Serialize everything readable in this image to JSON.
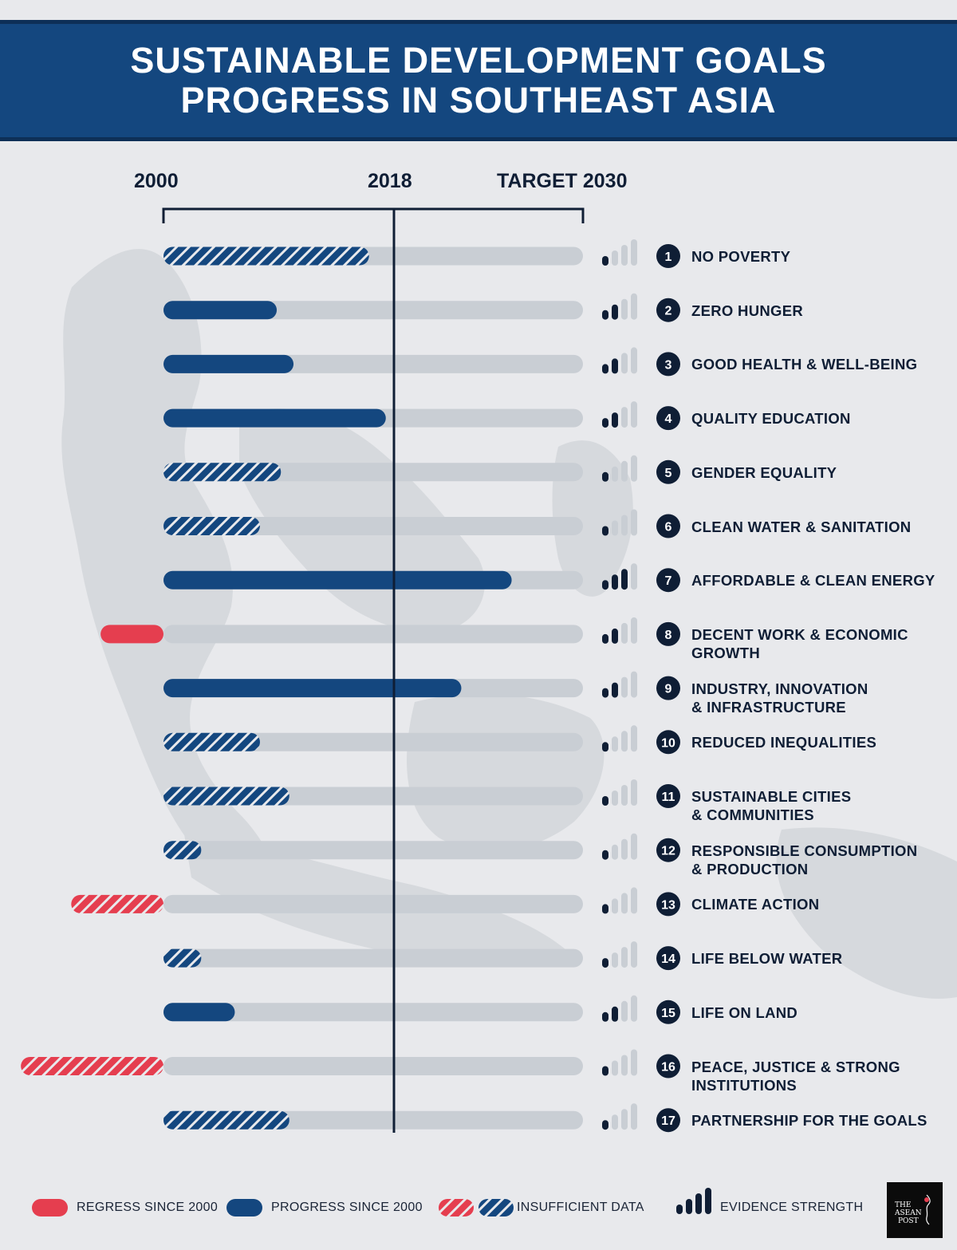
{
  "header": {
    "title_line1": "SUSTAINABLE DEVELOPMENT GOALS",
    "title_line2": "PROGRESS IN SOUTHEAST ASIA"
  },
  "axis": {
    "start_label": "2000",
    "mid_label": "2018",
    "end_label": "TARGET 2030"
  },
  "chart_data": {
    "type": "bar",
    "title": "Sustainable Development Goals Progress in Southeast Asia",
    "scale": {
      "start": "2000",
      "now": "2018",
      "target": "TARGET 2030",
      "now_fraction": 0.55
    },
    "value_unit": "fraction of the way from 2000 baseline to 2030 target (negative = regress)",
    "goals": [
      {
        "num": "1",
        "label": "NO POVERTY",
        "value": 0.49,
        "status": "insufficient",
        "evidence": 1
      },
      {
        "num": "2",
        "label": "ZERO HUNGER",
        "value": 0.27,
        "status": "progress",
        "evidence": 2
      },
      {
        "num": "3",
        "label": "GOOD HEALTH & WELL-BEING",
        "value": 0.31,
        "status": "progress",
        "evidence": 2
      },
      {
        "num": "4",
        "label": "QUALITY EDUCATION",
        "value": 0.53,
        "status": "progress",
        "evidence": 2
      },
      {
        "num": "5",
        "label": "GENDER EQUALITY",
        "value": 0.28,
        "status": "insufficient",
        "evidence": 1
      },
      {
        "num": "6",
        "label": "CLEAN WATER & SANITATION",
        "value": 0.23,
        "status": "insufficient",
        "evidence": 1
      },
      {
        "num": "7",
        "label": "AFFORDABLE & CLEAN ENERGY",
        "value": 0.83,
        "status": "progress",
        "evidence": 3
      },
      {
        "num": "8",
        "label": "DECENT WORK & ECONOMIC GROWTH",
        "value": -0.15,
        "status": "regress",
        "evidence": 2
      },
      {
        "num": "9",
        "label": "INDUSTRY, INNOVATION & INFRASTRUCTURE",
        "value": 0.71,
        "status": "progress",
        "evidence": 2
      },
      {
        "num": "10",
        "label": "REDUCED INEQUALITIES",
        "value": 0.23,
        "status": "insufficient",
        "evidence": 1
      },
      {
        "num": "11",
        "label": "SUSTAINABLE CITIES & COMMUNITIES",
        "value": 0.3,
        "status": "insufficient",
        "evidence": 1
      },
      {
        "num": "12",
        "label": "RESPONSIBLE CONSUMPTION & PRODUCTION",
        "value": 0.09,
        "status": "insufficient",
        "evidence": 1
      },
      {
        "num": "13",
        "label": "CLIMATE ACTION",
        "value": -0.22,
        "status": "regress-insufficient",
        "evidence": 1
      },
      {
        "num": "14",
        "label": "LIFE BELOW WATER",
        "value": 0.09,
        "status": "insufficient",
        "evidence": 1
      },
      {
        "num": "15",
        "label": "LIFE ON LAND",
        "value": 0.17,
        "status": "progress",
        "evidence": 2
      },
      {
        "num": "16",
        "label": "PEACE, JUSTICE & STRONG INSTITUTIONS",
        "value": -0.34,
        "status": "regress-insufficient",
        "evidence": 1
      },
      {
        "num": "17",
        "label": "PARTNERSHIP FOR THE GOALS",
        "value": 0.3,
        "status": "insufficient",
        "evidence": 1
      }
    ],
    "legend": [
      {
        "key": "regress",
        "label": "REGRESS SINCE 2000"
      },
      {
        "key": "progress",
        "label": "PROGRESS SINCE 2000"
      },
      {
        "key": "insufficient",
        "label": "INSUFFICIENT DATA"
      },
      {
        "key": "evidence",
        "label": "EVIDENCE STRENGTH"
      }
    ]
  },
  "labels": [
    {
      "line1": "NO POVERTY",
      "line2": ""
    },
    {
      "line1": "ZERO HUNGER",
      "line2": ""
    },
    {
      "line1": "GOOD HEALTH & WELL-BEING",
      "line2": ""
    },
    {
      "line1": "QUALITY EDUCATION",
      "line2": ""
    },
    {
      "line1": "GENDER EQUALITY",
      "line2": ""
    },
    {
      "line1": "CLEAN WATER & SANITATION",
      "line2": ""
    },
    {
      "line1": "AFFORDABLE & CLEAN ENERGY",
      "line2": ""
    },
    {
      "line1": "DECENT WORK & ECONOMIC",
      "line2": "GROWTH"
    },
    {
      "line1": "INDUSTRY, INNOVATION",
      "line2": "& INFRASTRUCTURE"
    },
    {
      "line1": "REDUCED INEQUALITIES",
      "line2": ""
    },
    {
      "line1": "SUSTAINABLE CITIES",
      "line2": "& COMMUNITIES"
    },
    {
      "line1": "RESPONSIBLE CONSUMPTION",
      "line2": "& PRODUCTION"
    },
    {
      "line1": "CLIMATE ACTION",
      "line2": ""
    },
    {
      "line1": "LIFE BELOW WATER",
      "line2": ""
    },
    {
      "line1": "LIFE ON LAND",
      "line2": ""
    },
    {
      "line1": "PEACE, JUSTICE & STRONG",
      "line2": "INSTITUTIONS"
    },
    {
      "line1": "PARTNERSHIP FOR THE GOALS",
      "line2": ""
    }
  ],
  "legend": {
    "regress": "REGRESS SINCE 2000",
    "progress": "PROGRESS SINCE 2000",
    "insufficient": "INSUFFICIENT DATA",
    "evidence": "EVIDENCE STRENGTH"
  },
  "logo": {
    "line1": "THE",
    "line2": "ASEAN",
    "line3": "POST"
  },
  "colors": {
    "navy": "#14477f",
    "dark": "#0f1e35",
    "track": "#c9ced4",
    "regress": "#e53e4f",
    "background": "#e8e9ec"
  }
}
